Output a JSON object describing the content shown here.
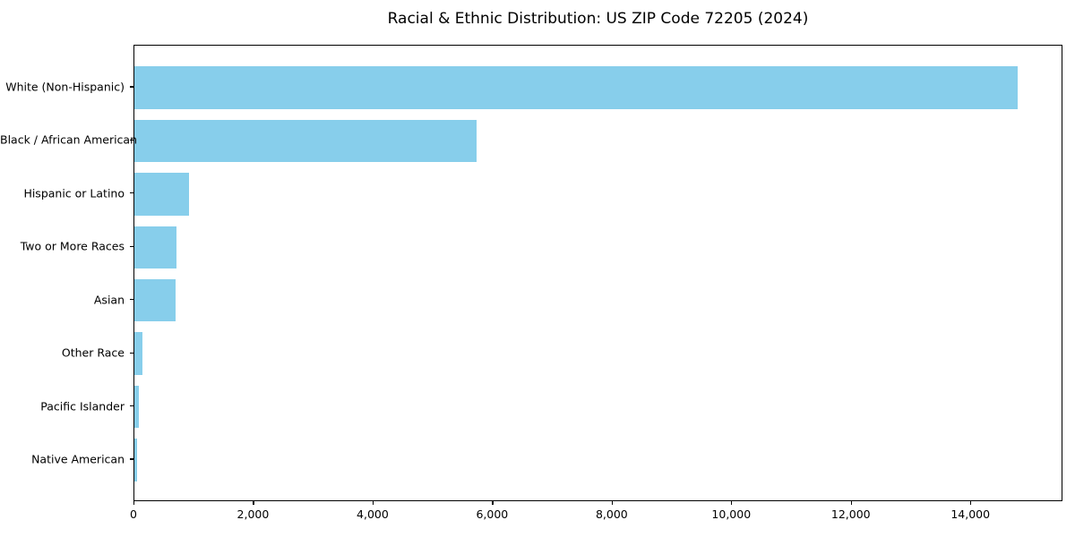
{
  "chart_data": {
    "type": "bar",
    "orientation": "horizontal",
    "title": "Racial & Ethnic Distribution: US ZIP Code 72205 (2024)",
    "xlabel": "",
    "ylabel": "",
    "categories": [
      "White (Non-Hispanic)",
      "Black / African American",
      "Hispanic or Latino",
      "Two or More Races",
      "Asian",
      "Other Race",
      "Pacific Islander",
      "Native American"
    ],
    "values": [
      14800,
      5740,
      920,
      700,
      690,
      140,
      70,
      45
    ],
    "xlim": [
      0,
      15540
    ],
    "x_ticks": [
      0,
      2000,
      4000,
      6000,
      8000,
      10000,
      12000,
      14000
    ],
    "x_tick_labels": [
      "0",
      "2,000",
      "4,000",
      "6,000",
      "8,000",
      "10,000",
      "12,000",
      "14,000"
    ],
    "grid": false,
    "legend": null,
    "bar_color": "#87CEEB",
    "frame_color": "#000000",
    "background_color": "#ffffff"
  }
}
